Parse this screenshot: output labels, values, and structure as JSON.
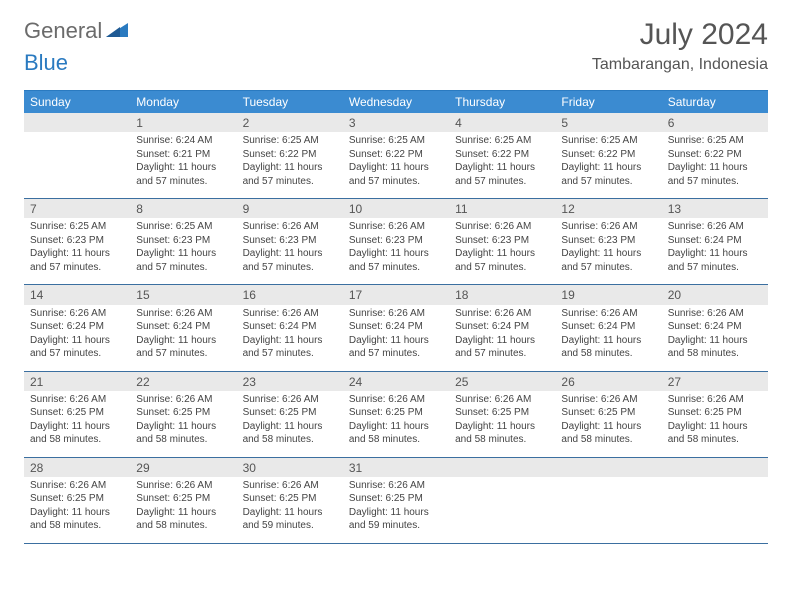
{
  "logo": {
    "text1": "General",
    "text2": "Blue"
  },
  "title": "July 2024",
  "location": "Tambarangan, Indonesia",
  "colors": {
    "header_bg": "#3b8bd1",
    "border": "#3b6fa0",
    "daynum_bg": "#e9e9e9",
    "text": "#444444",
    "title": "#555555"
  },
  "day_headers": [
    "Sunday",
    "Monday",
    "Tuesday",
    "Wednesday",
    "Thursday",
    "Friday",
    "Saturday"
  ],
  "weeks": [
    [
      {
        "n": "",
        "empty": true
      },
      {
        "n": "1",
        "sr": "Sunrise: 6:24 AM",
        "ss": "Sunset: 6:21 PM",
        "dl": "Daylight: 11 hours and 57 minutes."
      },
      {
        "n": "2",
        "sr": "Sunrise: 6:25 AM",
        "ss": "Sunset: 6:22 PM",
        "dl": "Daylight: 11 hours and 57 minutes."
      },
      {
        "n": "3",
        "sr": "Sunrise: 6:25 AM",
        "ss": "Sunset: 6:22 PM",
        "dl": "Daylight: 11 hours and 57 minutes."
      },
      {
        "n": "4",
        "sr": "Sunrise: 6:25 AM",
        "ss": "Sunset: 6:22 PM",
        "dl": "Daylight: 11 hours and 57 minutes."
      },
      {
        "n": "5",
        "sr": "Sunrise: 6:25 AM",
        "ss": "Sunset: 6:22 PM",
        "dl": "Daylight: 11 hours and 57 minutes."
      },
      {
        "n": "6",
        "sr": "Sunrise: 6:25 AM",
        "ss": "Sunset: 6:22 PM",
        "dl": "Daylight: 11 hours and 57 minutes."
      }
    ],
    [
      {
        "n": "7",
        "sr": "Sunrise: 6:25 AM",
        "ss": "Sunset: 6:23 PM",
        "dl": "Daylight: 11 hours and 57 minutes."
      },
      {
        "n": "8",
        "sr": "Sunrise: 6:25 AM",
        "ss": "Sunset: 6:23 PM",
        "dl": "Daylight: 11 hours and 57 minutes."
      },
      {
        "n": "9",
        "sr": "Sunrise: 6:26 AM",
        "ss": "Sunset: 6:23 PM",
        "dl": "Daylight: 11 hours and 57 minutes."
      },
      {
        "n": "10",
        "sr": "Sunrise: 6:26 AM",
        "ss": "Sunset: 6:23 PM",
        "dl": "Daylight: 11 hours and 57 minutes."
      },
      {
        "n": "11",
        "sr": "Sunrise: 6:26 AM",
        "ss": "Sunset: 6:23 PM",
        "dl": "Daylight: 11 hours and 57 minutes."
      },
      {
        "n": "12",
        "sr": "Sunrise: 6:26 AM",
        "ss": "Sunset: 6:23 PM",
        "dl": "Daylight: 11 hours and 57 minutes."
      },
      {
        "n": "13",
        "sr": "Sunrise: 6:26 AM",
        "ss": "Sunset: 6:24 PM",
        "dl": "Daylight: 11 hours and 57 minutes."
      }
    ],
    [
      {
        "n": "14",
        "sr": "Sunrise: 6:26 AM",
        "ss": "Sunset: 6:24 PM",
        "dl": "Daylight: 11 hours and 57 minutes."
      },
      {
        "n": "15",
        "sr": "Sunrise: 6:26 AM",
        "ss": "Sunset: 6:24 PM",
        "dl": "Daylight: 11 hours and 57 minutes."
      },
      {
        "n": "16",
        "sr": "Sunrise: 6:26 AM",
        "ss": "Sunset: 6:24 PM",
        "dl": "Daylight: 11 hours and 57 minutes."
      },
      {
        "n": "17",
        "sr": "Sunrise: 6:26 AM",
        "ss": "Sunset: 6:24 PM",
        "dl": "Daylight: 11 hours and 57 minutes."
      },
      {
        "n": "18",
        "sr": "Sunrise: 6:26 AM",
        "ss": "Sunset: 6:24 PM",
        "dl": "Daylight: 11 hours and 57 minutes."
      },
      {
        "n": "19",
        "sr": "Sunrise: 6:26 AM",
        "ss": "Sunset: 6:24 PM",
        "dl": "Daylight: 11 hours and 58 minutes."
      },
      {
        "n": "20",
        "sr": "Sunrise: 6:26 AM",
        "ss": "Sunset: 6:24 PM",
        "dl": "Daylight: 11 hours and 58 minutes."
      }
    ],
    [
      {
        "n": "21",
        "sr": "Sunrise: 6:26 AM",
        "ss": "Sunset: 6:25 PM",
        "dl": "Daylight: 11 hours and 58 minutes."
      },
      {
        "n": "22",
        "sr": "Sunrise: 6:26 AM",
        "ss": "Sunset: 6:25 PM",
        "dl": "Daylight: 11 hours and 58 minutes."
      },
      {
        "n": "23",
        "sr": "Sunrise: 6:26 AM",
        "ss": "Sunset: 6:25 PM",
        "dl": "Daylight: 11 hours and 58 minutes."
      },
      {
        "n": "24",
        "sr": "Sunrise: 6:26 AM",
        "ss": "Sunset: 6:25 PM",
        "dl": "Daylight: 11 hours and 58 minutes."
      },
      {
        "n": "25",
        "sr": "Sunrise: 6:26 AM",
        "ss": "Sunset: 6:25 PM",
        "dl": "Daylight: 11 hours and 58 minutes."
      },
      {
        "n": "26",
        "sr": "Sunrise: 6:26 AM",
        "ss": "Sunset: 6:25 PM",
        "dl": "Daylight: 11 hours and 58 minutes."
      },
      {
        "n": "27",
        "sr": "Sunrise: 6:26 AM",
        "ss": "Sunset: 6:25 PM",
        "dl": "Daylight: 11 hours and 58 minutes."
      }
    ],
    [
      {
        "n": "28",
        "sr": "Sunrise: 6:26 AM",
        "ss": "Sunset: 6:25 PM",
        "dl": "Daylight: 11 hours and 58 minutes."
      },
      {
        "n": "29",
        "sr": "Sunrise: 6:26 AM",
        "ss": "Sunset: 6:25 PM",
        "dl": "Daylight: 11 hours and 58 minutes."
      },
      {
        "n": "30",
        "sr": "Sunrise: 6:26 AM",
        "ss": "Sunset: 6:25 PM",
        "dl": "Daylight: 11 hours and 59 minutes."
      },
      {
        "n": "31",
        "sr": "Sunrise: 6:26 AM",
        "ss": "Sunset: 6:25 PM",
        "dl": "Daylight: 11 hours and 59 minutes."
      },
      {
        "n": "",
        "empty": true
      },
      {
        "n": "",
        "empty": true
      },
      {
        "n": "",
        "empty": true
      }
    ]
  ]
}
